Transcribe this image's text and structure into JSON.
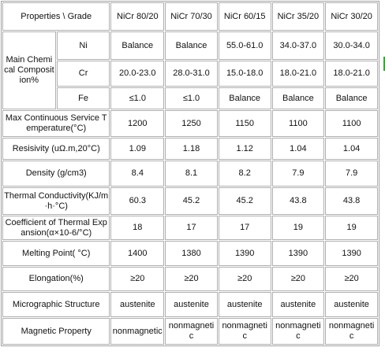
{
  "table": {
    "header": [
      "Properties \\ Grade",
      "NiCr 80/20",
      "NiCr 70/30",
      "NiCr 60/15",
      "NiCr 35/20",
      "NiCr 30/20"
    ],
    "composition": {
      "label": "Main Chemical Composition%",
      "rows": [
        [
          "Ni",
          "Balance",
          "Balance",
          "55.0-61.0",
          "34.0-37.0",
          "30.0-34.0"
        ],
        [
          "Cr",
          "20.0-23.0",
          "28.0-31.0",
          "15.0-18.0",
          "18.0-21.0",
          "18.0-21.0"
        ],
        [
          "Fe",
          "≤1.0",
          "≤1.0",
          "Balance",
          "Balance",
          "Balance"
        ]
      ]
    },
    "rows": [
      [
        "Max Continuous Service Temperature(°C)",
        "1200",
        "1250",
        "1150",
        "1100",
        "1100"
      ],
      [
        "Resisivity (uΩ.m,20°C)",
        "1.09",
        "1.18",
        "1.12",
        "1.04",
        "1.04"
      ],
      [
        "Density (g/cm3)",
        "8.4",
        "8.1",
        "8.2",
        "7.9",
        "7.9"
      ],
      [
        "Thermal Conductivity(KJ/m·h·°C)",
        "60.3",
        "45.2",
        "45.2",
        "43.8",
        "43.8"
      ],
      [
        "Coefficient of Thermal Expansion(α×10-6/°C)",
        "18",
        "17",
        "17",
        "19",
        "19"
      ],
      [
        "Melting Point( °C)",
        "1400",
        "1380",
        "1390",
        "1390",
        "1390"
      ],
      [
        "Elongation(%)",
        "≥20",
        "≥20",
        "≥20",
        "≥20",
        "≥20"
      ],
      [
        "Micrographic Structure",
        "austenite",
        "austenite",
        "austenite",
        "austenite",
        "austenite"
      ],
      [
        "Magnetic Property",
        "nonmagnetic",
        "nonmagnetic",
        "nonmagnetic",
        "nonmagnetic",
        "nonmagnetic"
      ]
    ]
  }
}
